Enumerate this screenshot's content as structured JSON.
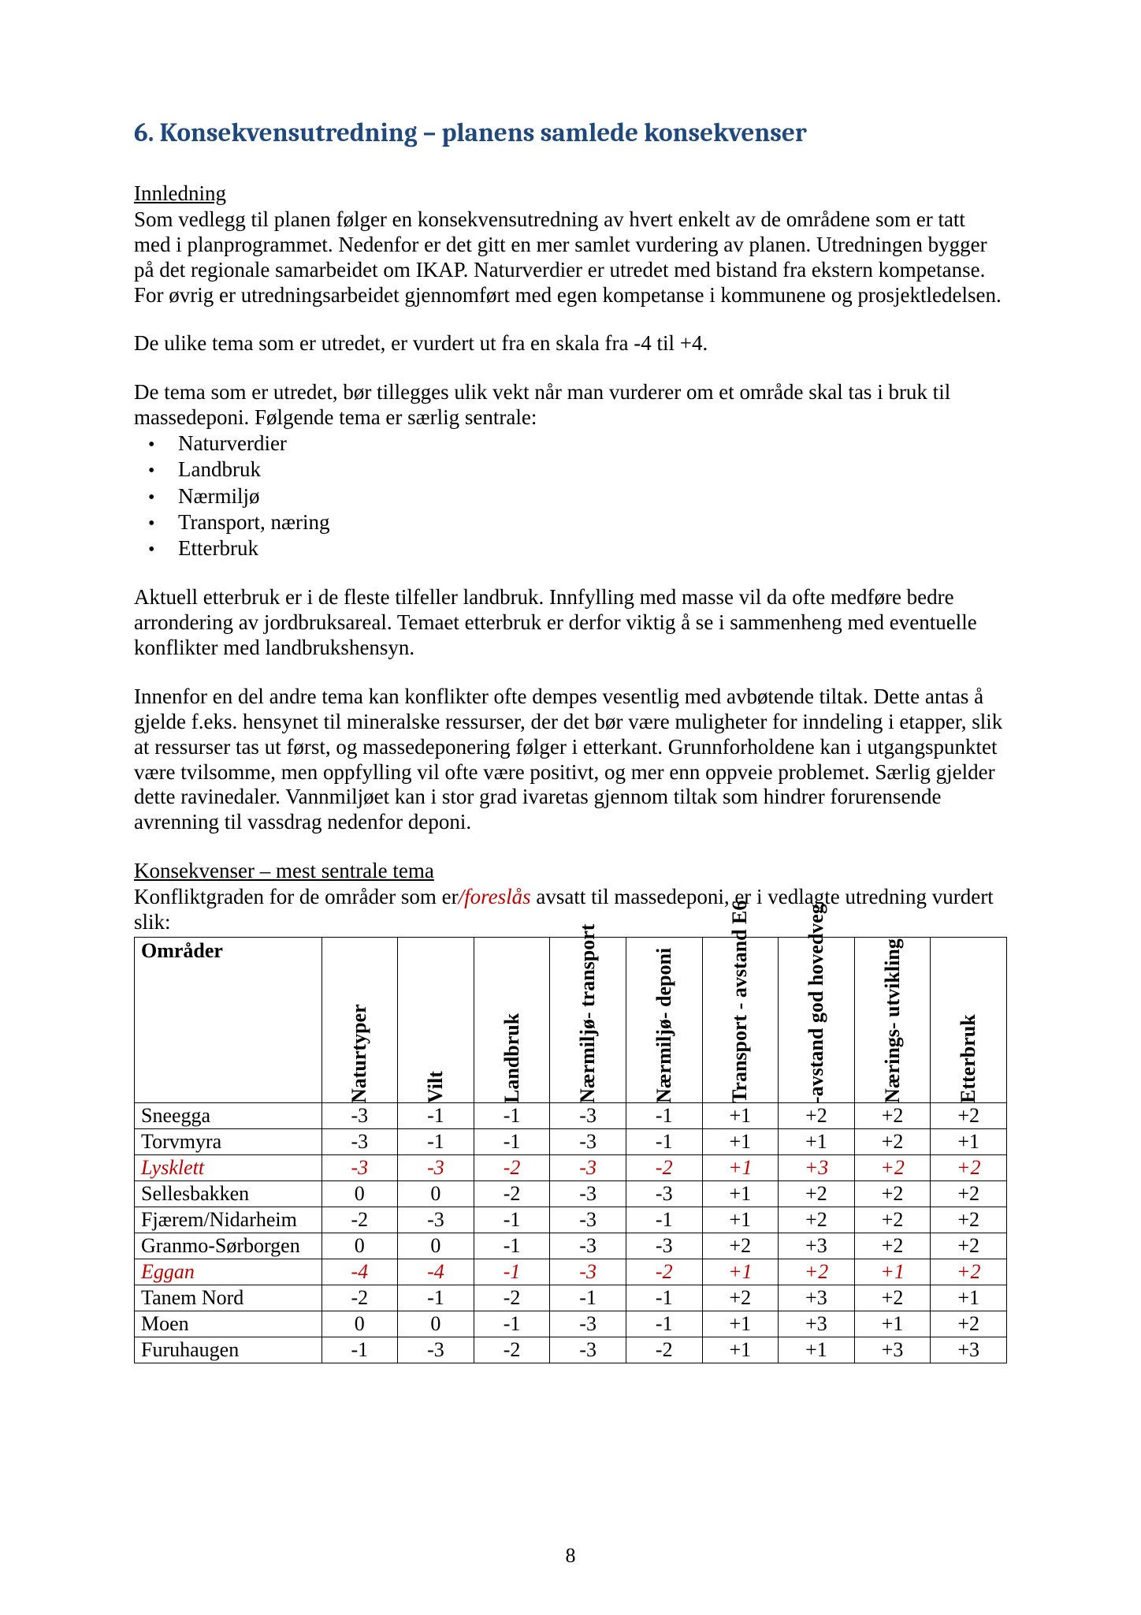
{
  "heading": "6.  Konsekvensutredning – planens samlede konsekvenser",
  "intro_heading": "Innledning",
  "intro_p1": "Som vedlegg til planen følger en konsekvensutredning av hvert enkelt av de områdene som er tatt med i planprogrammet. Nedenfor er det gitt en mer samlet vurdering av planen. Utredningen bygger på det regionale samarbeidet om IKAP. Naturverdier er utredet med bistand fra ekstern kompetanse. For øvrig er utredningsarbeidet gjennomført med egen kompetanse i kommunene og prosjektledelsen.",
  "intro_p2": "De ulike tema som er utredet, er vurdert ut fra en skala fra -4 til +4.",
  "intro_p3": "De tema som er utredet, bør tillegges ulik vekt når man vurderer om et område skal tas i bruk til massedeponi. Følgende tema er særlig sentrale:",
  "bullets": [
    "Naturverdier",
    "Landbruk",
    "Nærmiljø",
    "Transport, næring",
    "Etterbruk"
  ],
  "mid_p1": "Aktuell etterbruk er i de fleste tilfeller landbruk. Innfylling med masse vil da ofte medføre bedre arrondering av jordbruksareal. Temaet etterbruk er derfor viktig å se i sammenheng med eventuelle konflikter med landbrukshensyn.",
  "mid_p2": "Innenfor en del andre tema kan konflikter ofte dempes vesentlig med avbøtende tiltak. Dette antas å gjelde f.eks. hensynet til mineralske ressurser, der det bør være muligheter for inndeling i etapper, slik at ressurser tas ut først, og massedeponering følger i etterkant. Grunnforholdene kan i utgangspunktet være tvilsomme, men oppfylling vil ofte være positivt, og mer enn oppveie problemet. Særlig gjelder dette ravinedaler. Vannmiljøet kan i stor grad ivaretas gjennom tiltak som hindrer forurensende avrenning til vassdrag nedenfor deponi.",
  "kons_heading": "Konsekvenser – mest sentrale tema",
  "kons_lead_pre": "Konfliktgraden for de områder som er",
  "kons_lead_red": "/foreslås",
  "kons_lead_post": " avsatt til massedeponi, er i vedlagte utredning vurdert slik:",
  "table": {
    "area_header": "Områder",
    "columns": [
      "Naturtyper",
      "Vilt",
      "Landbruk",
      "Nærmiljø-\ntransport",
      "Nærmiljø-\ndeponi",
      "Transport -\navstand E6",
      "-avstand god\nhovedveg",
      "Nærings-\nutvikling",
      "Etterbruk"
    ],
    "rows": [
      {
        "name": "Sneegga",
        "vals": [
          "-3",
          "-1",
          "-1",
          "-3",
          "-1",
          "+1",
          "+2",
          "+2",
          "+2"
        ],
        "highlight": false
      },
      {
        "name": "Torvmyra",
        "vals": [
          "-3",
          "-1",
          "-1",
          "-3",
          "-1",
          "+1",
          "+1",
          "+2",
          "+1"
        ],
        "highlight": false
      },
      {
        "name": "Lysklett",
        "vals": [
          "-3",
          "-3",
          "-2",
          "-3",
          "-2",
          "+1",
          "+3",
          "+2",
          "+2"
        ],
        "highlight": true
      },
      {
        "name": "Sellesbakken",
        "vals": [
          "0",
          "0",
          "-2",
          "-3",
          "-3",
          "+1",
          "+2",
          "+2",
          "+2"
        ],
        "highlight": false
      },
      {
        "name": "Fjærem/Nidarheim",
        "vals": [
          "-2",
          "-3",
          "-1",
          "-3",
          "-1",
          "+1",
          "+2",
          "+2",
          "+2"
        ],
        "highlight": false
      },
      {
        "name": "Granmo-Sørborgen",
        "vals": [
          "0",
          "0",
          "-1",
          "-3",
          "-3",
          "+2",
          "+3",
          "+2",
          "+2"
        ],
        "highlight": false
      },
      {
        "name": "Eggan",
        "vals": [
          "-4",
          "-4",
          "-1",
          "-3",
          "-2",
          "+1",
          "+2",
          "+1",
          "+2"
        ],
        "highlight": true
      },
      {
        "name": "Tanem Nord",
        "vals": [
          "-2",
          "-1",
          "-2",
          "-1",
          "-1",
          "+2",
          "+3",
          "+2",
          "+1"
        ],
        "highlight": false
      },
      {
        "name": "Moen",
        "vals": [
          "0",
          "0",
          "-1",
          "-3",
          "-1",
          "+1",
          "+3",
          "+1",
          "+2"
        ],
        "highlight": false
      },
      {
        "name": "Furuhaugen",
        "vals": [
          "-1",
          "-3",
          "-2",
          "-3",
          "-2",
          "+1",
          "+1",
          "+3",
          "+3"
        ],
        "highlight": false
      }
    ]
  },
  "page_number": "8",
  "colors": {
    "heading": "#1f497d",
    "text": "#000000",
    "accent_red": "#c00000",
    "background": "#ffffff",
    "border": "#000000"
  },
  "fonts": {
    "body": "Times New Roman",
    "heading": "Cambria",
    "body_size_pt": 20,
    "heading_size_pt": 25
  }
}
